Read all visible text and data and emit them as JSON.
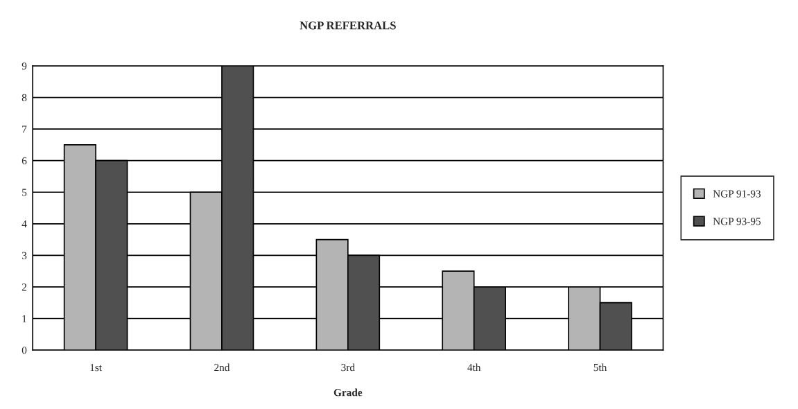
{
  "chart_data": {
    "type": "bar",
    "title": "NGP REFERRALS",
    "xlabel": "Grade",
    "categories": [
      "1st",
      "2nd",
      "3rd",
      "4th",
      "5th"
    ],
    "series": [
      {
        "name": "NGP 91-93",
        "color": "#b4b4b4",
        "values": [
          6.5,
          5,
          3.5,
          2.5,
          2
        ]
      },
      {
        "name": "NGP 93-95",
        "color": "#505050",
        "values": [
          6,
          9,
          3,
          2,
          1.5
        ]
      }
    ],
    "ylim": [
      0,
      9
    ],
    "yticks": [
      0,
      1,
      2,
      3,
      4,
      5,
      6,
      7,
      8,
      9
    ],
    "grid": "y",
    "legend": "right"
  }
}
